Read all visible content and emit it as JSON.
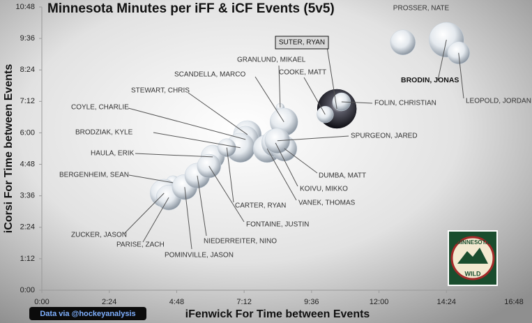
{
  "chart_data": {
    "type": "bubble",
    "title": "Minnesota  Minutes per iFF & iCF Events (5v5)",
    "x_label": "iFenwick For Time between Events",
    "y_label": "iCorsi For Time between Events",
    "source": "Data via @hockeyanalysis",
    "logo": {
      "top": "MINNESOTA",
      "bottom": "WILD"
    },
    "xlim": [
      0,
      1008
    ],
    "ylim": [
      0,
      648
    ],
    "xticks": [
      {
        "value": 0,
        "label": "0:00"
      },
      {
        "value": 144,
        "label": "2:24"
      },
      {
        "value": 288,
        "label": "4:48"
      },
      {
        "value": 432,
        "label": "7:12"
      },
      {
        "value": 576,
        "label": "9:36"
      },
      {
        "value": 720,
        "label": "12:00"
      },
      {
        "value": 864,
        "label": "14:24"
      },
      {
        "value": 1008,
        "label": "16:48"
      }
    ],
    "yticks": [
      {
        "value": 0,
        "label": "0:00"
      },
      {
        "value": 72,
        "label": "1:12"
      },
      {
        "value": 144,
        "label": "2:24"
      },
      {
        "value": 216,
        "label": "3:36"
      },
      {
        "value": 288,
        "label": "4:48"
      },
      {
        "value": 360,
        "label": "6:00"
      },
      {
        "value": 432,
        "label": "7:12"
      },
      {
        "value": 504,
        "label": "8:24"
      },
      {
        "value": 576,
        "label": "9:36"
      },
      {
        "value": 648,
        "label": "10:48"
      }
    ],
    "grid": false,
    "color": "#c8d2dc",
    "highlight_color": "#0a0a14",
    "labels": [
      "PROSSER, NATE",
      "BRODIN, JONAS",
      "LEOPOLD, JORDAN",
      "SUTER, RYAN",
      "FOLIN, CHRISTIAN",
      "COOKE, MATT",
      "GRANLUND, MIKAEL",
      "SCANDELLA, MARCO",
      "STEWART, CHRIS",
      "COYLE, CHARLIE",
      "BRODZIAK, KYLE",
      "HAULA, ERIK",
      "BERGENHEIM, SEAN",
      "ZUCKER, JASON",
      "PARISE, ZACH",
      "POMINVILLE, JASON",
      "NIEDERREITER, NINO",
      "FONTAINE, JUSTIN",
      "CARTER, RYAN",
      "VANEK, THOMAS",
      "KOIVU, MIKKO",
      "DUMBA, MATT",
      "SPURGEON, JARED"
    ],
    "x": [
      771,
      864,
      890,
      630,
      640,
      605,
      509,
      517,
      439,
      435,
      424,
      365,
      280,
      261,
      271,
      305,
      332,
      357,
      395,
      481,
      499,
      518,
      503
    ],
    "y": [
      567,
      573,
      543,
      415,
      431,
      402,
      418,
      385,
      356,
      345,
      326,
      305,
      246,
      222,
      212,
      236,
      262,
      284,
      326,
      324,
      337,
      324,
      342
    ],
    "sizes": [
      18,
      25,
      16,
      28,
      13,
      12,
      6,
      20,
      20,
      19,
      21,
      17,
      10,
      20,
      18,
      18,
      18,
      17,
      13,
      20,
      20,
      18,
      18
    ]
  }
}
